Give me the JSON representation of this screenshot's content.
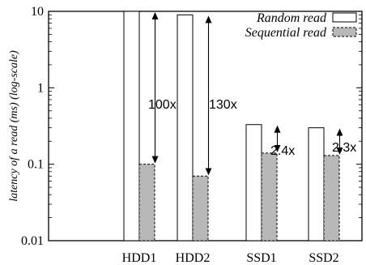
{
  "chart_data": {
    "type": "bar",
    "ylabel": "latency of a read (ms) (log-scale)",
    "yscale": "log",
    "ylim": [
      0.01,
      10
    ],
    "yticks": [
      {
        "value": 10,
        "label": "10"
      },
      {
        "value": 1,
        "label": "1"
      },
      {
        "value": 0.1,
        "label": "0.1"
      },
      {
        "value": 0.01,
        "label": "0.01"
      }
    ],
    "categories": [
      "HDD1",
      "HDD2",
      "SSD1",
      "SSD2"
    ],
    "series": [
      {
        "name": "Random read",
        "values": [
          10,
          9,
          0.33,
          0.3
        ],
        "color": "#ffffff",
        "stroke": "#000000",
        "dashed": false
      },
      {
        "name": "Sequential read",
        "values": [
          0.1,
          0.07,
          0.14,
          0.13
        ],
        "color": "#b8b8b8",
        "stroke": "#000000",
        "dashed": true
      }
    ],
    "annotations": [
      {
        "category": "HDD1",
        "text": "100x"
      },
      {
        "category": "HDD2",
        "text": "130x"
      },
      {
        "category": "SSD1",
        "text": "2.4x"
      },
      {
        "category": "SSD2",
        "text": "2.3x"
      }
    ],
    "legend_position": "top-right",
    "grid": false
  }
}
